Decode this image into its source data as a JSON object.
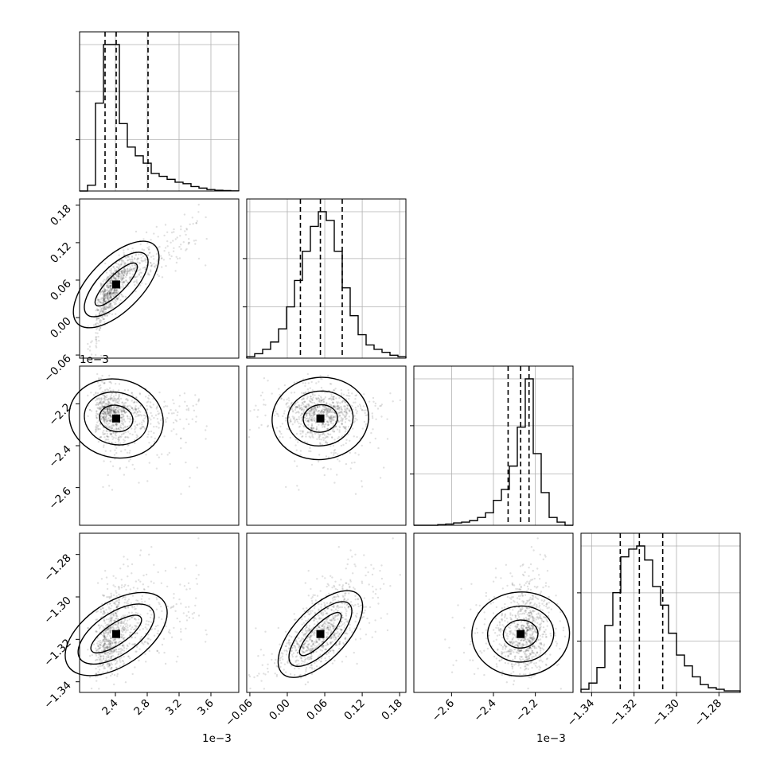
{
  "chart_data": {
    "type": "corner",
    "parameters": [
      {
        "range": [
          1.95,
          3.95
        ],
        "ticks": [
          2.4,
          2.8,
          3.2,
          3.6
        ],
        "tick_labels": [
          "2.4",
          "2.8",
          "3.2",
          "3.6"
        ],
        "offset_text": "1e−3",
        "quantiles": [
          2.27,
          2.41,
          2.81
        ],
        "hist": [
          0,
          0.04,
          0.6,
          1.0,
          1.0,
          0.46,
          0.3,
          0.24,
          0.19,
          0.12,
          0.1,
          0.08,
          0.06,
          0.05,
          0.03,
          0.02,
          0.01,
          0.005,
          0.003,
          0.001
        ]
      },
      {
        "range": [
          -0.065,
          0.19
        ],
        "ticks": [
          -0.06,
          0.0,
          0.06,
          0.12,
          0.18
        ],
        "tick_labels": [
          "−0.06",
          "0.00",
          "0.06",
          "0.12",
          "0.18"
        ],
        "offset_text": "",
        "quantiles": [
          0.021,
          0.053,
          0.088
        ],
        "hist": [
          0.01,
          0.03,
          0.06,
          0.11,
          0.2,
          0.35,
          0.53,
          0.73,
          0.9,
          1.0,
          0.94,
          0.73,
          0.48,
          0.29,
          0.16,
          0.09,
          0.06,
          0.04,
          0.02,
          0.01
        ]
      },
      {
        "range": [
          -2.78,
          -2.02
        ],
        "ticks": [
          -2.6,
          -2.4,
          -2.2
        ],
        "tick_labels": [
          "−2.6",
          "−2.4",
          "−2.2"
        ],
        "offset_text": "1e−3",
        "quantiles": [
          -2.33,
          -2.27,
          -2.23
        ],
        "hist": [
          0,
          0,
          0,
          0.004,
          0.008,
          0.015,
          0.02,
          0.03,
          0.05,
          0.08,
          0.16,
          0.23,
          0.38,
          0.63,
          0.94,
          0.46,
          0.21,
          0.05,
          0.02,
          0
        ]
      },
      {
        "range": [
          -1.345,
          -1.27
        ],
        "ticks": [
          -1.34,
          -1.32,
          -1.3,
          -1.28
        ],
        "tick_labels": [
          "−1.34",
          "−1.32",
          "−1.30",
          "−1.28"
        ],
        "offset_text": "",
        "quantiles": [
          -1.3265,
          -1.3175,
          -1.3065
        ],
        "hist": [
          0.02,
          0.06,
          0.16,
          0.43,
          0.64,
          0.87,
          0.92,
          0.94,
          0.85,
          0.68,
          0.56,
          0.38,
          0.24,
          0.17,
          0.1,
          0.05,
          0.03,
          0.02,
          0.01,
          0.01
        ]
      }
    ],
    "correlations": [
      [
        0,
        1,
        0.88
      ],
      [
        0,
        2,
        -0.2
      ],
      [
        1,
        2,
        0.1
      ],
      [
        0,
        3,
        0.6
      ],
      [
        1,
        3,
        0.9
      ],
      [
        2,
        3,
        0.05
      ]
    ],
    "grid": true
  }
}
